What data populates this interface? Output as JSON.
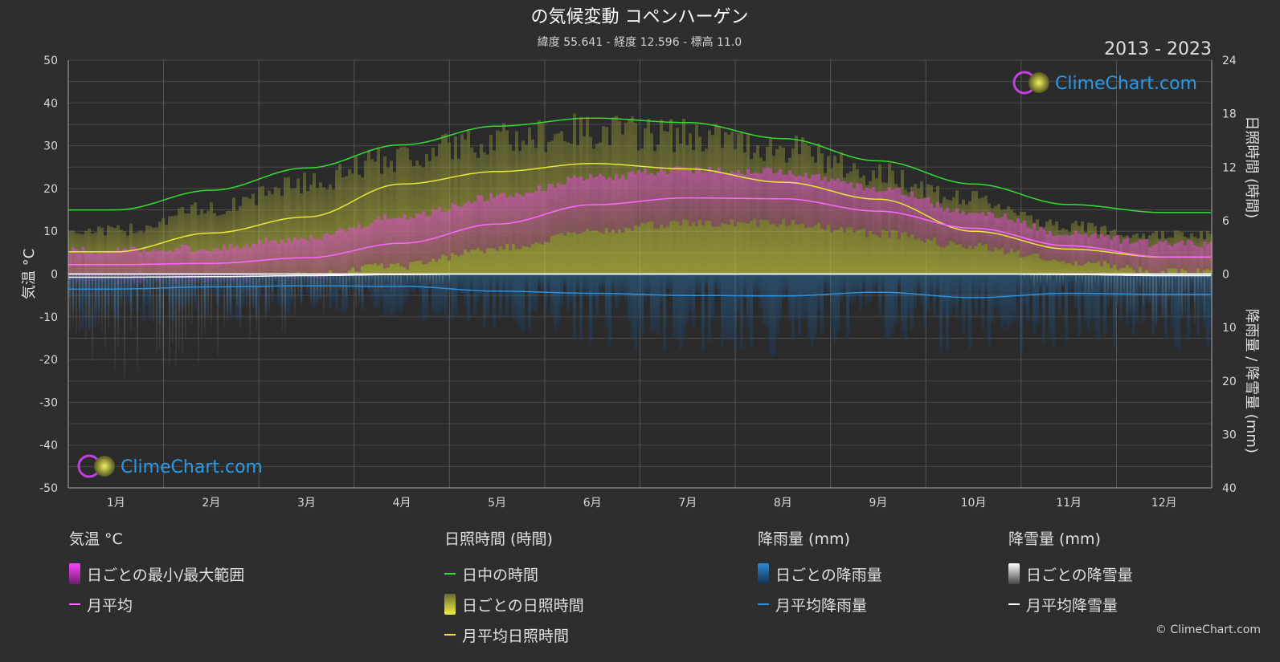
{
  "header": {
    "title": "の気候変動 コペンハーゲン",
    "subtitle": "緯度 55.641 - 経度 12.596 - 標高 11.0",
    "period": "2013 - 2023"
  },
  "brand": {
    "logo_text": "ClimeChart.com",
    "copyright": "© ClimeChart.com"
  },
  "chart_data": {
    "type": "line",
    "x_categories": [
      "1月",
      "2月",
      "3月",
      "4月",
      "5月",
      "6月",
      "7月",
      "8月",
      "9月",
      "10月",
      "11月",
      "12月"
    ],
    "y_left": {
      "label": "気温 °C",
      "ticks": [
        50,
        40,
        30,
        20,
        10,
        0,
        -10,
        -20,
        -30,
        -40,
        -50
      ],
      "range": [
        -50,
        50
      ]
    },
    "y_right_top": {
      "label": "日照時間 (時間)",
      "ticks": [
        24,
        18,
        12,
        6,
        0
      ],
      "range": [
        0,
        24
      ]
    },
    "y_right_bottom": {
      "label": "降雨量 / 降雪量 (mm)",
      "ticks": [
        0,
        10,
        20,
        30,
        40
      ],
      "range": [
        0,
        40
      ]
    },
    "grid": true,
    "series": [
      {
        "name": "日中の時間",
        "unit": "hours",
        "color": "#33dd33",
        "values": [
          7.2,
          9.4,
          11.9,
          14.5,
          16.6,
          17.5,
          17.0,
          15.2,
          12.7,
          10.1,
          7.8,
          6.9
        ]
      },
      {
        "name": "月平均日照時間",
        "unit": "hours",
        "color": "#e8e83a",
        "values": [
          2.5,
          4.6,
          6.4,
          10.1,
          11.5,
          12.4,
          11.8,
          10.3,
          8.4,
          4.8,
          2.8,
          1.9
        ]
      },
      {
        "name": "月平均",
        "unit": "°C",
        "color": "#ff66ff",
        "values": [
          2.2,
          2.5,
          3.8,
          7.2,
          11.7,
          16.2,
          17.8,
          17.6,
          14.7,
          10.7,
          6.6,
          4.0
        ]
      },
      {
        "name": "月平均降雨量",
        "unit": "mm",
        "color": "#2a90e0",
        "values": [
          2.8,
          2.4,
          2.2,
          2.3,
          3.2,
          3.6,
          4.0,
          4.1,
          3.4,
          4.4,
          3.6,
          3.8
        ]
      },
      {
        "name": "月平均降雪量",
        "unit": "mm",
        "color": "#ffffff",
        "values": [
          0.6,
          0.5,
          0.3,
          0.1,
          0,
          0,
          0,
          0,
          0,
          0,
          0.1,
          0.3
        ]
      }
    ],
    "bands": [
      {
        "name": "日ごとの最小/最大範囲",
        "unit": "°C",
        "color": "#e040e0",
        "min": [
          -0.5,
          -0.3,
          0.5,
          3.0,
          7.0,
          11.0,
          13.0,
          13.0,
          10.5,
          7.5,
          4.0,
          1.5
        ],
        "max": [
          4.5,
          5.0,
          7.5,
          12.5,
          17.0,
          21.5,
          23.5,
          23.0,
          19.0,
          13.5,
          8.5,
          6.0
        ]
      },
      {
        "name": "日ごとの日照時間",
        "unit": "hours",
        "color": "#b5b53a",
        "values": [
          5.0,
          7.5,
          10.5,
          13.5,
          15.5,
          16.5,
          16.0,
          14.5,
          11.5,
          8.5,
          5.5,
          4.5
        ]
      }
    ]
  },
  "legend": {
    "groups": [
      {
        "heading": "気温 °C",
        "items": [
          {
            "label": "日ごとの最小/最大範囲",
            "kind": "bar",
            "color": "#e040e0"
          },
          {
            "label": "月平均",
            "kind": "line",
            "color": "#ff66ff"
          }
        ]
      },
      {
        "heading": "日照時間 (時間)",
        "items": [
          {
            "label": "日中の時間",
            "kind": "line",
            "color": "#33dd33"
          },
          {
            "label": "日ごとの日照時間",
            "kind": "bar",
            "color": "#c8c83a"
          },
          {
            "label": "月平均日照時間",
            "kind": "line",
            "color": "#e8e83a"
          }
        ]
      },
      {
        "heading": "降雨量 (mm)",
        "items": [
          {
            "label": "日ごとの降雨量",
            "kind": "bar",
            "color": "#2a8ad8"
          },
          {
            "label": "月平均降雨量",
            "kind": "line",
            "color": "#2a90e0"
          }
        ]
      },
      {
        "heading": "降雪量 (mm)",
        "items": [
          {
            "label": "日ごとの降雪量",
            "kind": "bar",
            "color": "#d8d8d8"
          },
          {
            "label": "月平均降雪量",
            "kind": "line",
            "color": "#ffffff"
          }
        ]
      }
    ]
  }
}
